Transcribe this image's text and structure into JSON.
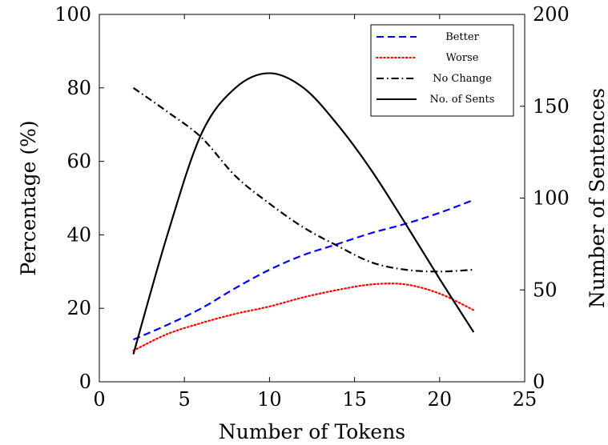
{
  "chart_data": {
    "type": "line",
    "title": "",
    "xlabel": "Number of Tokens",
    "ylabel": "Percentage (%)",
    "y2label": "Number of Sentences",
    "xlim": [
      0,
      25
    ],
    "ylim": [
      0,
      100
    ],
    "y2lim": [
      0,
      200
    ],
    "xticks": [
      "0",
      "5",
      "10",
      "15",
      "20",
      "25"
    ],
    "yticks": [
      "0",
      "20",
      "40",
      "60",
      "80",
      "100"
    ],
    "y2ticks": [
      "0",
      "50",
      "100",
      "150",
      "200"
    ],
    "grid": false,
    "legend_position": "top-right",
    "series": [
      {
        "name": "Better",
        "axis": "left",
        "color": "#0000ff",
        "dash": "dashed",
        "x": [
          2,
          4,
          6,
          8,
          10,
          12,
          14,
          16,
          18,
          20,
          22
        ],
        "y": [
          11.5,
          15.5,
          20,
          25.5,
          30.5,
          34.5,
          37.5,
          40.5,
          43,
          46,
          49.5
        ]
      },
      {
        "name": "Worse",
        "axis": "left",
        "color": "#ff0000",
        "dash": "dotted",
        "x": [
          2,
          4,
          6,
          8,
          10,
          12,
          14,
          16,
          18,
          20,
          22
        ],
        "y": [
          8.5,
          13,
          16,
          18.5,
          20.5,
          23,
          25,
          26.5,
          26.5,
          24,
          19.5
        ]
      },
      {
        "name": "No Change",
        "axis": "left",
        "color": "#000000",
        "dash": "dashdot",
        "x": [
          2,
          4,
          6,
          8,
          10,
          12,
          14,
          16,
          18,
          20,
          22
        ],
        "y": [
          80,
          73.5,
          66.5,
          56,
          48.5,
          42,
          37,
          32.5,
          30.5,
          30,
          30.5
        ]
      },
      {
        "name": "No. of Sents",
        "axis": "right",
        "color": "#000000",
        "dash": "solid",
        "x": [
          2,
          4,
          6,
          8,
          10,
          12,
          14,
          16,
          18,
          20,
          22
        ],
        "y": [
          15,
          80,
          135,
          160,
          168,
          160,
          140,
          115,
          86,
          56,
          27
        ]
      }
    ]
  }
}
